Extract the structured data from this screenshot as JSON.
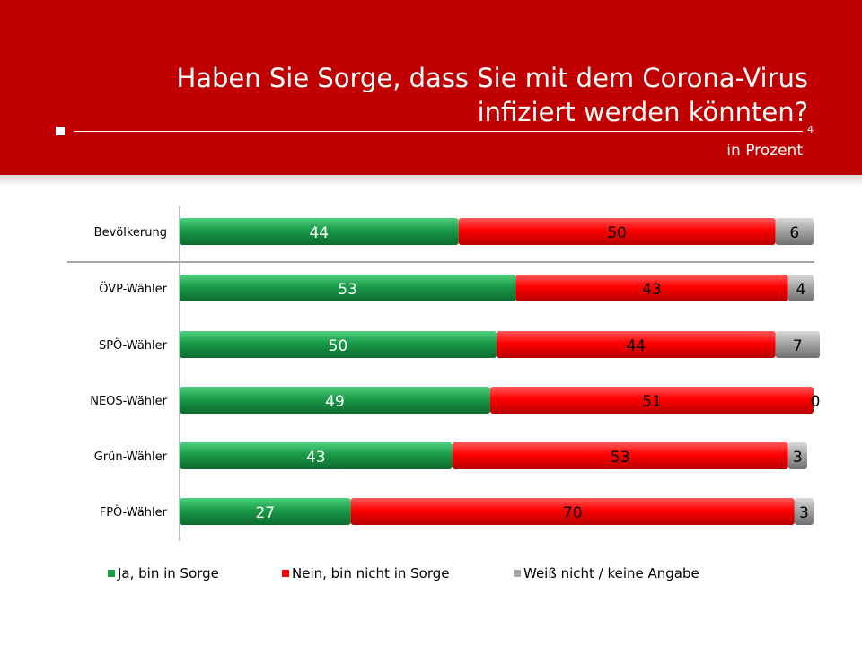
{
  "header": {
    "title_line1": "Haben Sie Sorge, dass Sie mit dem Corona-Virus",
    "title_line2": "infiziert werden könnten?",
    "page_number": "4",
    "subtitle": "in Prozent"
  },
  "colors": {
    "header": "#c00000",
    "yes": "#1a9b48",
    "no": "#ff0000",
    "unknown": "#a6a6a6"
  },
  "chart_data": {
    "type": "bar",
    "orientation": "horizontal",
    "stacked": true,
    "xlim": [
      0,
      100
    ],
    "categories": [
      "Bevölkerung",
      "ÖVP-Wähler",
      "SPÖ-Wähler",
      "NEOS-Wähler",
      "Grün-Wähler",
      "FPÖ-Wähler"
    ],
    "series": [
      {
        "name": "Ja, bin in Sorge",
        "color": "#1a9b48",
        "values": [
          44,
          53,
          50,
          49,
          43,
          27
        ]
      },
      {
        "name": "Nein, bin nicht in Sorge",
        "color": "#ff0000",
        "values": [
          50,
          43,
          44,
          51,
          53,
          70
        ]
      },
      {
        "name": "Weiß nicht / keine Angabe",
        "color": "#a6a6a6",
        "values": [
          6,
          4,
          7,
          0,
          3,
          3
        ]
      }
    ],
    "legend_position": "bottom"
  }
}
